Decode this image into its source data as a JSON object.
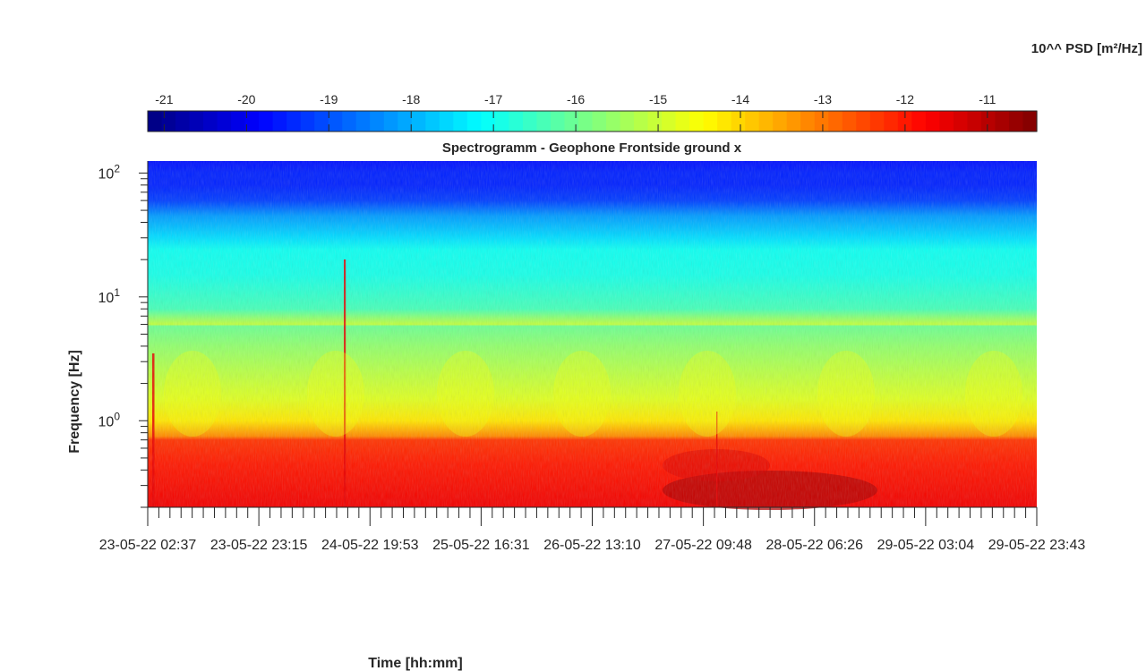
{
  "chart_data": {
    "type": "heatmap",
    "title": "Spectrogramm - Geophone Frontside ground x",
    "xlabel": "Time [hh:mm]",
    "ylabel": "Frequency [Hz]",
    "colorbar": {
      "label": "10^^ PSD [m²/Hz]",
      "colormap": "jet",
      "range": [
        -21.2,
        -10.4
      ],
      "ticks": [
        -21,
        -20,
        -19,
        -18,
        -17,
        -16,
        -15,
        -14,
        -13,
        -12,
        -11
      ],
      "tick_labels": [
        "-21",
        "-20",
        "-19",
        "-18",
        "-17",
        "-16",
        "-15",
        "-14",
        "-13",
        "-12",
        "-11"
      ],
      "placement": "top"
    },
    "x_axis": {
      "tick_labels": [
        "23-05-22 02:37",
        "23-05-22 23:15",
        "24-05-22 19:53",
        "25-05-22 16:31",
        "26-05-22 13:10",
        "27-05-22 09:48",
        "28-05-22 06:26",
        "29-05-22 03:04",
        "29-05-22 23:43"
      ],
      "range": [
        "23-05-22 02:37",
        "29-05-22 23:43"
      ]
    },
    "y_axis": {
      "scale": "log",
      "range": [
        0.2,
        125
      ],
      "tick_values": [
        1,
        10,
        100
      ],
      "tick_labels": [
        {
          "base": "10",
          "exp": "0"
        },
        {
          "base": "10",
          "exp": "1"
        },
        {
          "base": "10",
          "exp": "2"
        }
      ]
    },
    "psd_profile": {
      "description_free": true,
      "frequency_hz": [
        0.2,
        0.45,
        0.7,
        0.75,
        1.0,
        1.5,
        2.5,
        4,
        5.8,
        6.0,
        8,
        15,
        24,
        30,
        45,
        60,
        80,
        100,
        125
      ],
      "log10_psd": [
        -11.6,
        -12.0,
        -12.3,
        -13.2,
        -14.2,
        -14.8,
        -15.2,
        -15.6,
        -16.0,
        -15.1,
        -16.4,
        -16.9,
        -17.0,
        -17.5,
        -18.2,
        -19.2,
        -19.5,
        -19.5,
        -19.7
      ]
    },
    "grid": false
  }
}
